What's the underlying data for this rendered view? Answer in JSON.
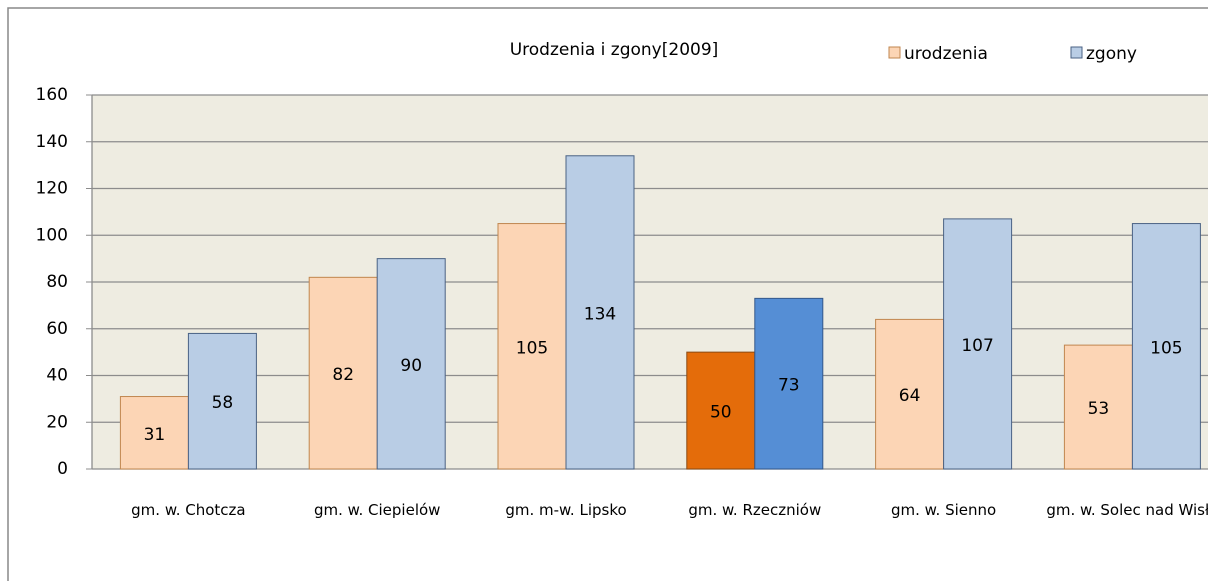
{
  "chart_data": {
    "type": "bar",
    "title": "Urodzenia i zgony[2009]",
    "categories": [
      "gm. w. Chotcza",
      "gm. w. Ciepielów",
      "gm. m-w. Lipsko",
      "gm. w. Rzeczniów",
      "gm. w. Sienno",
      "gm. w. Solec nad Wisłą"
    ],
    "series": [
      {
        "name": "urodzenia",
        "color": "#fcd5b5",
        "colors": [
          "#fcd5b5",
          "#fcd5b5",
          "#fcd5b5",
          "#e46c0a",
          "#fcd5b5",
          "#fcd5b5"
        ],
        "values": [
          31,
          82,
          105,
          50,
          64,
          53
        ]
      },
      {
        "name": "zgony",
        "color": "#b9cde5",
        "colors": [
          "#b9cde5",
          "#b9cde5",
          "#b9cde5",
          "#558ed5",
          "#b9cde5",
          "#b9cde5"
        ],
        "values": [
          58,
          90,
          134,
          73,
          107,
          105
        ]
      }
    ],
    "ylim": [
      0,
      160
    ],
    "yticks": [
      0,
      20,
      40,
      60,
      80,
      100,
      120,
      140,
      160
    ],
    "grid": true,
    "legend": "top-right"
  }
}
